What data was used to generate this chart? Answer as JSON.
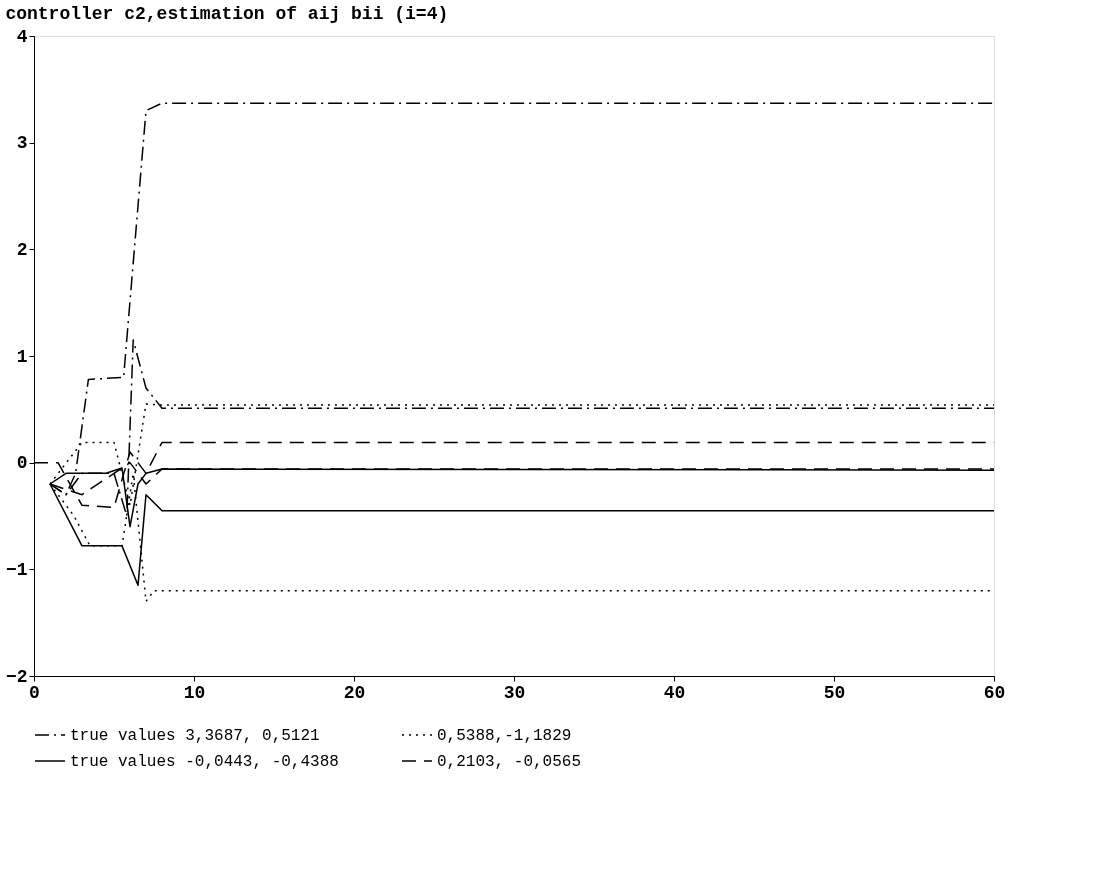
{
  "chart_data": {
    "type": "line",
    "title": "controller c2,estimation of aij bii (i=4)",
    "xlim": [
      0,
      60
    ],
    "xticks": [
      0,
      10,
      20,
      30,
      40,
      50,
      60
    ],
    "ylim": [
      -2,
      4
    ],
    "yticks": [
      -2,
      -1,
      0,
      1,
      2,
      3,
      4
    ],
    "grid": false,
    "legend": "bottom",
    "marker": "none",
    "series": [
      {
        "name": "true values 3,3687, 0,5121",
        "color": "#000000",
        "line_style": "dashdot",
        "x": [
          1,
          2,
          2.6,
          3.4,
          5.6,
          7,
          8,
          60
        ],
        "values": [
          -0.2,
          -0.3,
          -0.1,
          0.78,
          0.8,
          3.3,
          3.37,
          3.37
        ]
      },
      {
        "color": "#000000",
        "line_style": "dashdot",
        "x": [
          1,
          2,
          3,
          5,
          5.8,
          6.2,
          7,
          8,
          60
        ],
        "values": [
          -0.2,
          -0.3,
          -0.1,
          -0.1,
          -0.5,
          1.15,
          0.7,
          0.51,
          0.51
        ]
      },
      {
        "name": "0,5388,-1,1829",
        "color": "#000000",
        "line_style": "dotted",
        "x": [
          1,
          3,
          5,
          6,
          7,
          8,
          60
        ],
        "values": [
          -0.2,
          0.19,
          0.19,
          -0.4,
          0.55,
          0.54,
          0.54
        ]
      },
      {
        "color": "#000000",
        "line_style": "dotted",
        "x": [
          1,
          2.5,
          3.5,
          5.5,
          6.2,
          7,
          7.5,
          60
        ],
        "values": [
          -0.2,
          -0.5,
          -0.78,
          -0.78,
          -0.1,
          -1.3,
          -1.2,
          -1.2
        ]
      },
      {
        "name": "true values -0,0443, -0,4388",
        "color": "#000000",
        "line_style": "solid",
        "x": [
          1,
          2,
          4.5,
          5.5,
          6,
          6.5,
          7,
          8,
          60
        ],
        "values": [
          -0.2,
          -0.1,
          -0.1,
          -0.05,
          -0.6,
          -0.2,
          -0.1,
          -0.06,
          -0.07
        ]
      },
      {
        "color": "#000000",
        "line_style": "solid",
        "x": [
          1,
          3,
          5.5,
          6.5,
          7,
          8,
          60
        ],
        "values": [
          -0.2,
          -0.78,
          -0.78,
          -1.15,
          -0.3,
          -0.45,
          -0.45
        ]
      },
      {
        "name": "0,2103, -0,0565",
        "color": "#000000",
        "line_style": "dashed",
        "x": [
          0,
          1.5,
          3,
          5,
          6,
          7,
          8,
          60
        ],
        "values": [
          0,
          0,
          -0.4,
          -0.42,
          0.1,
          -0.1,
          0.19,
          0.19
        ]
      },
      {
        "color": "#000000",
        "line_style": "dashed",
        "x": [
          1,
          3,
          5,
          6,
          7,
          8,
          60
        ],
        "values": [
          -0.2,
          -0.3,
          -0.1,
          0.0,
          -0.2,
          -0.06,
          -0.06
        ]
      }
    ]
  }
}
